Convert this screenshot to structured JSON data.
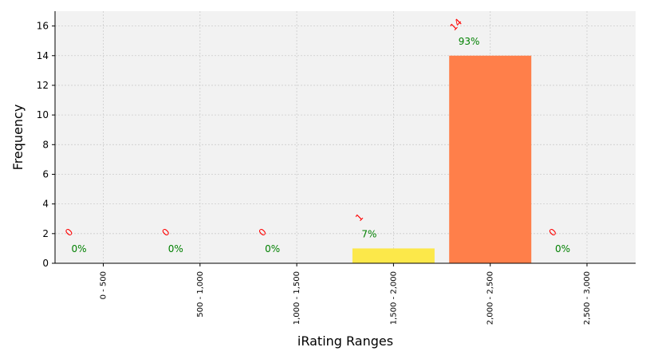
{
  "chart_data": {
    "type": "bar",
    "title": "",
    "xlabel": "iRating Ranges",
    "ylabel": "Frequency",
    "ylim": [
      0,
      17
    ],
    "yticks": [
      0,
      2,
      4,
      6,
      8,
      10,
      12,
      14,
      16
    ],
    "grid": true,
    "categories": [
      "0 - 500",
      "500 - 1,000",
      "1,000 - 1,500",
      "1,500 - 2,000",
      "2,000 - 2,500",
      "2,500 - 3,000"
    ],
    "values": [
      0,
      0,
      0,
      1,
      14,
      0
    ],
    "count_labels": [
      "0",
      "0",
      "0",
      "1",
      "14",
      "0"
    ],
    "percent_labels": [
      "0%",
      "0%",
      "0%",
      "7%",
      "93%",
      "0%"
    ],
    "bar_colors": [
      "#ff7f4a",
      "#ff7f4a",
      "#ff7f4a",
      "#fce84a",
      "#ff7f4a",
      "#ff7f4a"
    ],
    "colors": {
      "plot_background": "#f2f2f2",
      "grid": "#cccccc",
      "count_label": "#ff0000",
      "percent_label": "#008000"
    }
  }
}
